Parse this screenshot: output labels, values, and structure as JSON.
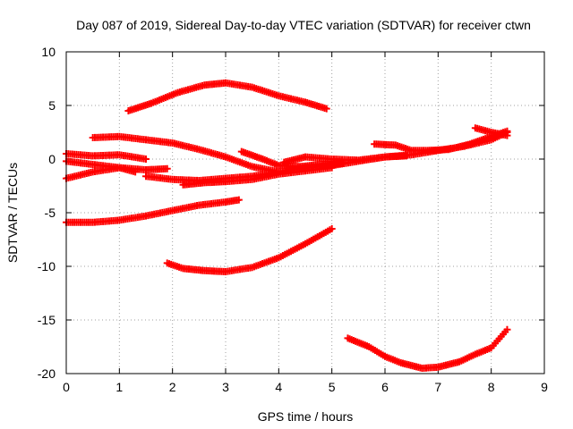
{
  "chart_data": {
    "type": "scatter",
    "title": "Day 087 of 2019, Sidereal Day-to-day VTEC variation (SDTVAR) for receiver ctwn",
    "xlabel": "GPS time / hours",
    "ylabel": "SDTVAR / TECUs",
    "xlim": [
      0,
      9
    ],
    "ylim": [
      -20,
      10
    ],
    "xticks": [
      0,
      1,
      2,
      3,
      4,
      5,
      6,
      7,
      8,
      9
    ],
    "yticks": [
      -20,
      -15,
      -10,
      -5,
      0,
      5,
      10
    ],
    "grid": true,
    "legend": "none",
    "marker": "plus",
    "color": "#ff0000",
    "series": [
      {
        "x": [
          1.17,
          1.6,
          2.1,
          2.6,
          3.0,
          3.5,
          4.0,
          4.5,
          4.9
        ],
        "y": [
          4.5,
          5.2,
          6.2,
          6.9,
          7.1,
          6.7,
          5.9,
          5.3,
          4.7
        ]
      },
      {
        "x": [
          0.5,
          1.0,
          1.5,
          2.0,
          2.5,
          3.0,
          3.5,
          4.0
        ],
        "y": [
          2.0,
          2.1,
          1.8,
          1.5,
          0.9,
          0.2,
          -0.7,
          -1.2
        ]
      },
      {
        "x": [
          0.0,
          0.5,
          1.0,
          1.5
        ],
        "y": [
          0.5,
          0.3,
          0.4,
          0.0
        ]
      },
      {
        "x": [
          0.0,
          0.5,
          1.0,
          1.5,
          1.9
        ],
        "y": [
          -0.2,
          -0.5,
          -0.8,
          -1.0,
          -0.9
        ]
      },
      {
        "x": [
          0.0,
          0.5,
          1.0,
          1.3
        ],
        "y": [
          -1.8,
          -1.2,
          -0.8,
          -1.2
        ]
      },
      {
        "x": [
          1.5,
          2.0,
          2.5,
          3.0,
          3.5,
          4.0,
          4.5,
          5.0,
          5.5,
          6.0,
          6.5,
          7.0,
          7.5,
          8.0,
          8.3
        ],
        "y": [
          -1.6,
          -1.9,
          -2.0,
          -1.8,
          -1.6,
          -1.2,
          -0.8,
          -0.6,
          -0.2,
          0.2,
          0.4,
          0.8,
          1.2,
          1.8,
          2.5
        ]
      },
      {
        "x": [
          2.2,
          2.6,
          3.0,
          3.5,
          4.0,
          4.5,
          5.0
        ],
        "y": [
          -2.4,
          -2.2,
          -2.1,
          -1.9,
          -1.4,
          -1.1,
          -0.8
        ]
      },
      {
        "x": [
          3.3,
          3.7,
          4.0,
          4.4,
          4.8,
          5.2
        ],
        "y": [
          0.7,
          0.0,
          -0.6,
          -0.7,
          -0.5,
          -0.4
        ]
      },
      {
        "x": [
          4.1,
          4.5,
          5.0,
          5.5,
          6.0,
          6.4
        ],
        "y": [
          -0.3,
          0.2,
          0.0,
          -0.1,
          0.2,
          0.3
        ]
      },
      {
        "x": [
          5.8,
          6.2,
          6.5,
          6.8,
          7.2,
          7.6,
          8.0,
          8.3
        ],
        "y": [
          1.4,
          1.3,
          0.8,
          0.8,
          0.9,
          1.4,
          2.1,
          2.6
        ]
      },
      {
        "x": [
          7.7,
          8.0,
          8.3
        ],
        "y": [
          2.9,
          2.5,
          2.2
        ]
      },
      {
        "x": [
          0.0,
          0.5,
          1.0,
          1.5,
          2.0,
          2.5,
          3.0,
          3.25
        ],
        "y": [
          -5.9,
          -5.9,
          -5.7,
          -5.3,
          -4.8,
          -4.3,
          -4.0,
          -3.8
        ]
      },
      {
        "x": [
          1.9,
          2.2,
          2.6,
          3.0,
          3.5,
          4.0,
          4.5,
          5.0
        ],
        "y": [
          -9.7,
          -10.2,
          -10.4,
          -10.5,
          -10.1,
          -9.2,
          -7.9,
          -6.5
        ]
      },
      {
        "x": [
          5.3,
          5.7,
          6.0,
          6.3,
          6.7,
          7.0,
          7.4,
          7.7,
          8.0,
          8.3
        ],
        "y": [
          -16.7,
          -17.5,
          -18.4,
          -19.0,
          -19.5,
          -19.4,
          -18.9,
          -18.2,
          -17.6,
          -15.9
        ]
      }
    ]
  }
}
